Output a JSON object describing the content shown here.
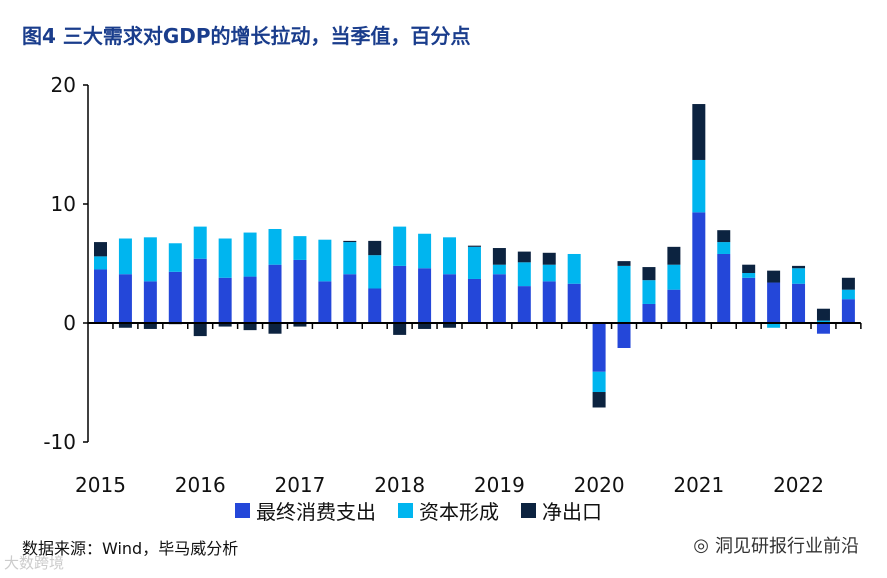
{
  "title": "图4  三大需求对GDP的增长拉动，当季值，百分点",
  "source": "数据来源：Wind，毕马威分析",
  "watermark": "洞见研报行业前沿",
  "watermark2": "大数跨境",
  "colors": {
    "consumption": "#2447d9",
    "capital": "#00b5ef",
    "netexport": "#0c2340"
  },
  "chart_data": {
    "type": "bar",
    "stacked": true,
    "title": "图4  三大需求对GDP的增长拉动，当季值，百分点",
    "xlabel": "",
    "ylabel": "",
    "ylim": [
      -10,
      20
    ],
    "yticks": [
      "-10",
      "0",
      "10",
      "20"
    ],
    "xtick_labels": [
      "2015",
      "2016",
      "2017",
      "2018",
      "2019",
      "2020",
      "2021",
      "2022"
    ],
    "categories": [
      "2015Q1",
      "2015Q2",
      "2015Q3",
      "2015Q4",
      "2016Q1",
      "2016Q2",
      "2016Q3",
      "2016Q4",
      "2017Q1",
      "2017Q2",
      "2017Q3",
      "2017Q4",
      "2018Q1",
      "2018Q2",
      "2018Q3",
      "2018Q4",
      "2019Q1",
      "2019Q2",
      "2019Q3",
      "2019Q4",
      "2020Q1",
      "2020Q2",
      "2020Q3",
      "2020Q4",
      "2021Q1",
      "2021Q2",
      "2021Q3",
      "2021Q4",
      "2022Q1",
      "2022Q2",
      "2022Q3"
    ],
    "legend_position": "bottom",
    "series": [
      {
        "name": "最终消费支出",
        "values": [
          4.5,
          4.1,
          3.5,
          4.3,
          5.4,
          3.8,
          3.9,
          4.9,
          5.3,
          3.5,
          4.1,
          2.9,
          4.8,
          4.6,
          4.1,
          3.7,
          4.1,
          3.1,
          3.5,
          3.3,
          -4.1,
          -2.1,
          1.6,
          2.8,
          9.3,
          5.8,
          3.8,
          3.4,
          3.3,
          -0.9,
          2.0
        ]
      },
      {
        "name": "资本形成",
        "values": [
          1.1,
          3.0,
          3.7,
          2.4,
          2.7,
          3.3,
          3.7,
          3.0,
          2.0,
          3.5,
          2.7,
          2.8,
          3.3,
          2.9,
          3.1,
          2.7,
          0.8,
          2.0,
          1.4,
          2.5,
          -1.7,
          4.8,
          2.0,
          2.1,
          4.4,
          1.0,
          0.4,
          -0.4,
          1.3,
          0.2,
          0.8
        ]
      },
      {
        "name": "净出口",
        "values": [
          1.2,
          -0.4,
          -0.5,
          -0.1,
          -1.1,
          -0.3,
          -0.6,
          -0.9,
          -0.3,
          0.0,
          0.1,
          1.2,
          -1.0,
          -0.5,
          -0.4,
          0.1,
          1.4,
          0.9,
          1.0,
          0.0,
          -1.3,
          0.4,
          1.1,
          1.5,
          4.7,
          1.0,
          0.7,
          1.0,
          0.2,
          1.0,
          1.0
        ]
      }
    ]
  }
}
